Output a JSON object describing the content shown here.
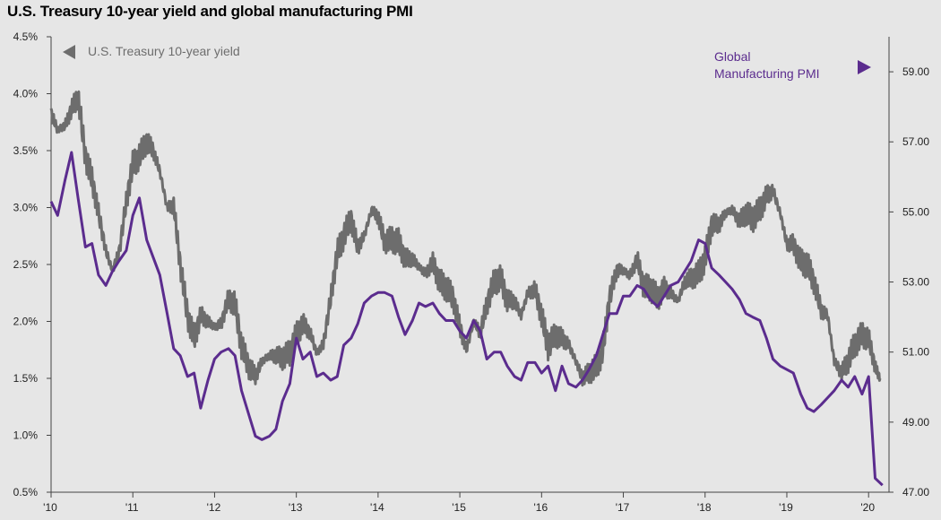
{
  "chart_data": {
    "type": "line",
    "title": "U.S. Treasury 10-year yield and global manufacturing PMI",
    "x_tick_labels": [
      "'10",
      "'11",
      "'12",
      "'13",
      "'14",
      "'15",
      "'16",
      "'17",
      "'18",
      "'19",
      "'20"
    ],
    "x_tick_years": [
      2010,
      2011,
      2012,
      2013,
      2014,
      2015,
      2016,
      2017,
      2018,
      2019,
      2020
    ],
    "xlim": [
      2010.0,
      2020.25
    ],
    "left_axis": {
      "ylim": [
        0.5,
        4.5
      ],
      "ticks": [
        0.5,
        1.0,
        1.5,
        2.0,
        2.5,
        3.0,
        3.5,
        4.0,
        4.5
      ],
      "tick_labels": [
        "0.5%",
        "1.0%",
        "1.5%",
        "2.0%",
        "2.5%",
        "3.0%",
        "3.5%",
        "4.0%",
        "4.5%"
      ]
    },
    "right_axis": {
      "ylim": [
        47.0,
        60.0
      ],
      "ticks": [
        47,
        49,
        51,
        53,
        55,
        57,
        59
      ],
      "tick_labels": [
        "47.00",
        "49.00",
        "51.00",
        "53.00",
        "55.00",
        "57.00",
        "59.00"
      ]
    },
    "legend": {
      "yield_label": "U.S. Treasury 10-year yield",
      "pmi_label_line1": "Global",
      "pmi_label_line2": "Manufacturing PMI"
    },
    "colors": {
      "yield": "#6d6d6d",
      "pmi": "#5b2c8e",
      "background": "#e6e6e6",
      "axis": "#444444"
    },
    "series": [
      {
        "name": "U.S. Treasury 10-year yield",
        "axis": "left",
        "x": [
          2010.0,
          2010.08,
          2010.17,
          2010.25,
          2010.33,
          2010.42,
          2010.5,
          2010.58,
          2010.67,
          2010.75,
          2010.83,
          2010.92,
          2011.0,
          2011.08,
          2011.17,
          2011.25,
          2011.33,
          2011.42,
          2011.5,
          2011.58,
          2011.67,
          2011.75,
          2011.83,
          2011.92,
          2012.0,
          2012.08,
          2012.17,
          2012.25,
          2012.33,
          2012.42,
          2012.5,
          2012.58,
          2012.67,
          2012.75,
          2012.83,
          2012.92,
          2013.0,
          2013.08,
          2013.17,
          2013.25,
          2013.33,
          2013.42,
          2013.5,
          2013.58,
          2013.67,
          2013.75,
          2013.83,
          2013.92,
          2014.0,
          2014.08,
          2014.17,
          2014.25,
          2014.33,
          2014.42,
          2014.5,
          2014.58,
          2014.67,
          2014.75,
          2014.83,
          2014.92,
          2015.0,
          2015.08,
          2015.17,
          2015.25,
          2015.33,
          2015.42,
          2015.5,
          2015.58,
          2015.67,
          2015.75,
          2015.83,
          2015.92,
          2016.0,
          2016.08,
          2016.17,
          2016.25,
          2016.33,
          2016.42,
          2016.5,
          2016.58,
          2016.67,
          2016.75,
          2016.83,
          2016.92,
          2017.0,
          2017.08,
          2017.17,
          2017.25,
          2017.33,
          2017.42,
          2017.5,
          2017.58,
          2017.67,
          2017.75,
          2017.83,
          2017.92,
          2018.0,
          2018.08,
          2018.17,
          2018.25,
          2018.33,
          2018.42,
          2018.5,
          2018.58,
          2018.67,
          2018.75,
          2018.83,
          2018.92,
          2019.0,
          2019.08,
          2019.17,
          2019.25,
          2019.33,
          2019.42,
          2019.5,
          2019.58,
          2019.67,
          2019.75,
          2019.83,
          2019.92,
          2020.0,
          2020.08,
          2020.14
        ],
        "values": [
          3.83,
          3.68,
          3.72,
          3.86,
          3.98,
          3.45,
          3.25,
          2.95,
          2.62,
          2.45,
          2.6,
          3.05,
          3.38,
          3.45,
          3.58,
          3.5,
          3.32,
          3.0,
          3.02,
          2.5,
          2.05,
          1.85,
          2.05,
          2.0,
          1.95,
          1.98,
          2.2,
          2.15,
          1.78,
          1.6,
          1.52,
          1.65,
          1.7,
          1.7,
          1.68,
          1.72,
          1.88,
          1.98,
          1.9,
          1.72,
          1.8,
          2.2,
          2.6,
          2.75,
          2.9,
          2.65,
          2.75,
          2.98,
          2.92,
          2.7,
          2.72,
          2.7,
          2.55,
          2.55,
          2.48,
          2.42,
          2.52,
          2.35,
          2.3,
          2.2,
          1.95,
          1.75,
          2.0,
          1.9,
          2.15,
          2.35,
          2.38,
          2.18,
          2.18,
          2.05,
          2.25,
          2.28,
          2.05,
          1.78,
          1.88,
          1.85,
          1.8,
          1.65,
          1.5,
          1.55,
          1.6,
          1.75,
          2.2,
          2.45,
          2.45,
          2.4,
          2.55,
          2.3,
          2.3,
          2.2,
          2.3,
          2.25,
          2.18,
          2.35,
          2.38,
          2.42,
          2.55,
          2.85,
          2.85,
          2.95,
          2.98,
          2.88,
          2.95,
          2.9,
          2.98,
          3.1,
          3.15,
          2.95,
          2.68,
          2.68,
          2.52,
          2.5,
          2.35,
          2.1,
          2.05,
          1.65,
          1.55,
          1.65,
          1.8,
          1.88,
          1.85,
          1.6,
          1.5
        ]
      },
      {
        "name": "Global Manufacturing PMI",
        "axis": "right",
        "x": [
          2010.0,
          2010.08,
          2010.17,
          2010.25,
          2010.33,
          2010.42,
          2010.5,
          2010.58,
          2010.67,
          2010.75,
          2010.83,
          2010.92,
          2011.0,
          2011.08,
          2011.17,
          2011.25,
          2011.33,
          2011.42,
          2011.5,
          2011.58,
          2011.67,
          2011.75,
          2011.83,
          2011.92,
          2012.0,
          2012.08,
          2012.17,
          2012.25,
          2012.33,
          2012.42,
          2012.5,
          2012.58,
          2012.67,
          2012.75,
          2012.83,
          2012.92,
          2013.0,
          2013.08,
          2013.17,
          2013.25,
          2013.33,
          2013.42,
          2013.5,
          2013.58,
          2013.67,
          2013.75,
          2013.83,
          2013.92,
          2014.0,
          2014.08,
          2014.17,
          2014.25,
          2014.33,
          2014.42,
          2014.5,
          2014.58,
          2014.67,
          2014.75,
          2014.83,
          2014.92,
          2015.0,
          2015.08,
          2015.17,
          2015.25,
          2015.33,
          2015.42,
          2015.5,
          2015.58,
          2015.67,
          2015.75,
          2015.83,
          2015.92,
          2016.0,
          2016.08,
          2016.17,
          2016.25,
          2016.33,
          2016.42,
          2016.5,
          2016.58,
          2016.67,
          2016.75,
          2016.83,
          2016.92,
          2017.0,
          2017.08,
          2017.17,
          2017.25,
          2017.33,
          2017.42,
          2017.5,
          2017.58,
          2017.67,
          2017.75,
          2017.83,
          2017.92,
          2018.0,
          2018.08,
          2018.17,
          2018.25,
          2018.33,
          2018.42,
          2018.5,
          2018.58,
          2018.67,
          2018.75,
          2018.83,
          2018.92,
          2019.0,
          2019.08,
          2019.17,
          2019.25,
          2019.33,
          2019.42,
          2019.5,
          2019.58,
          2019.67,
          2019.75,
          2019.83,
          2019.92,
          2020.0,
          2020.08,
          2020.17
        ],
        "values": [
          55.3,
          54.9,
          55.9,
          56.7,
          55.4,
          54.0,
          54.1,
          53.2,
          52.9,
          53.3,
          53.6,
          53.9,
          54.9,
          55.4,
          54.2,
          53.7,
          53.2,
          52.1,
          51.1,
          50.9,
          50.3,
          50.4,
          49.4,
          50.2,
          50.8,
          51.0,
          51.1,
          50.9,
          49.9,
          49.2,
          48.6,
          48.5,
          48.6,
          48.8,
          49.6,
          50.1,
          51.4,
          50.8,
          51.0,
          50.3,
          50.4,
          50.2,
          50.3,
          51.2,
          51.4,
          51.8,
          52.4,
          52.6,
          52.7,
          52.7,
          52.6,
          52.0,
          51.5,
          51.9,
          52.4,
          52.3,
          52.4,
          52.1,
          51.9,
          51.9,
          51.6,
          51.4,
          51.9,
          51.6,
          50.8,
          51.0,
          51.0,
          50.6,
          50.3,
          50.2,
          50.7,
          50.7,
          50.4,
          50.6,
          49.9,
          50.6,
          50.1,
          50.0,
          50.2,
          50.5,
          50.9,
          51.5,
          52.1,
          52.1,
          52.6,
          52.6,
          52.9,
          52.8,
          52.5,
          52.3,
          52.6,
          52.9,
          53.0,
          53.3,
          53.6,
          54.2,
          54.1,
          53.4,
          53.2,
          53.0,
          52.8,
          52.5,
          52.1,
          52.0,
          51.9,
          51.4,
          50.8,
          50.6,
          50.5,
          50.4,
          49.8,
          49.4,
          49.3,
          49.5,
          49.7,
          49.9,
          50.2,
          50.0,
          50.3,
          49.8,
          50.3,
          47.4,
          47.2
        ]
      }
    ]
  }
}
